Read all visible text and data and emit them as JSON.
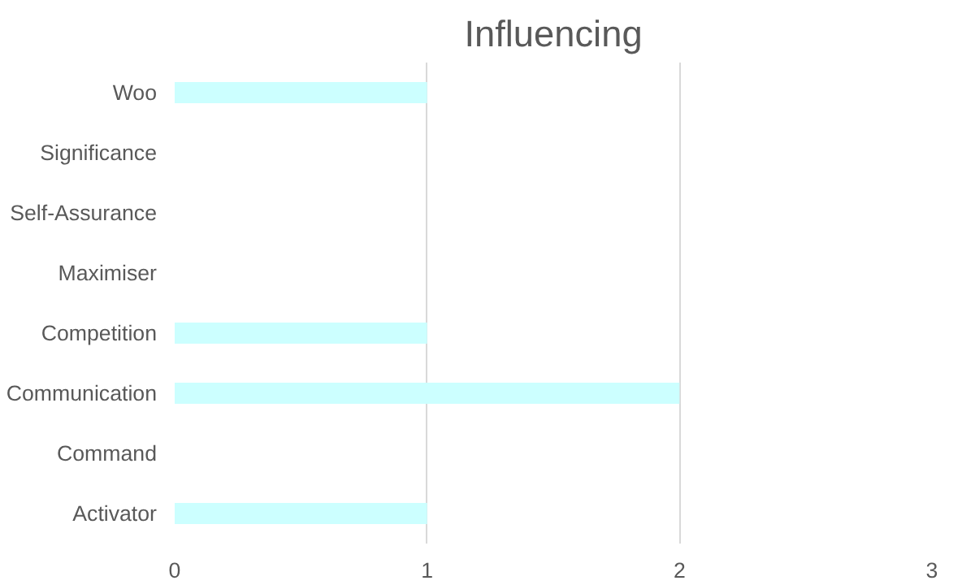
{
  "chart_data": {
    "type": "bar",
    "orientation": "horizontal",
    "title": "Influencing",
    "categories": [
      "Woo",
      "Significance",
      "Self-Assurance",
      "Maximiser",
      "Competition",
      "Communication",
      "Command",
      "Activator"
    ],
    "values": [
      1,
      0,
      0,
      0,
      1,
      2,
      0,
      1
    ],
    "color": "#ccffff",
    "xlim": [
      0,
      3
    ],
    "xticks": [
      0,
      1,
      2,
      3
    ],
    "grid": "x"
  }
}
